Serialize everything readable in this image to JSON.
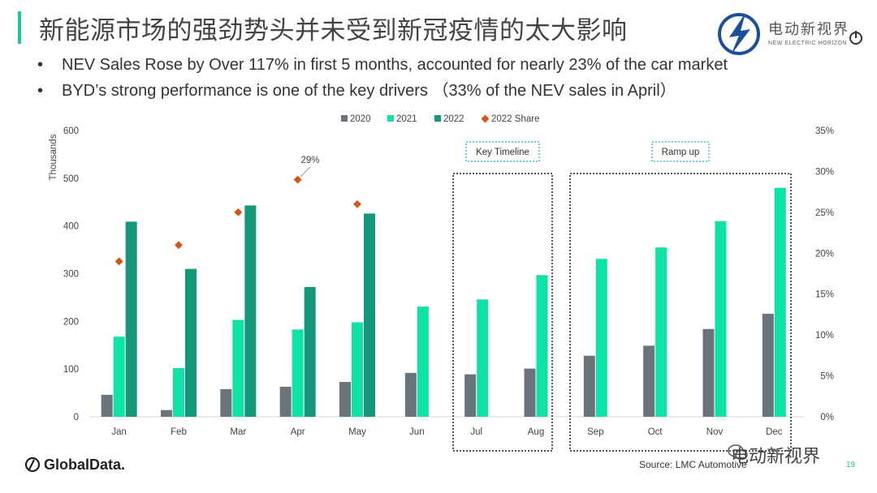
{
  "header": {
    "title": "新能源市场的强劲势头并未受到新冠疫情的太大影响",
    "bullets": [
      "NEV Sales Rose by Over 117% in first 5 months, accounted for nearly 23% of the car market",
      "BYD’s strong performance is one of the key drivers （33% of the NEV sales in April）"
    ],
    "bullet_glyph": "•"
  },
  "logo": {
    "cn": "电动新视界",
    "en": "NEW ELECTRIC HORIZON"
  },
  "footer": {
    "company": "GlobalData.",
    "source": "Source: LMC Automotive",
    "page": "19",
    "watermark": "电动新视界"
  },
  "colors": {
    "s2020": "#6b747c",
    "s2021": "#0ee3a5",
    "s2022": "#14977a",
    "share": "#d4541a",
    "accent": "#1fc7a0"
  },
  "chart_data": {
    "type": "bar",
    "categories": [
      "Jan",
      "Feb",
      "Mar",
      "Apr",
      "May",
      "Jun",
      "Jul",
      "Aug",
      "Sep",
      "Oct",
      "Nov",
      "Dec"
    ],
    "ylabel": "Thousands",
    "ylim": [
      0,
      600
    ],
    "yticks": [
      "0",
      "100",
      "200",
      "300",
      "400",
      "500",
      "600"
    ],
    "y2lim": [
      0,
      35
    ],
    "y2ticks": [
      "0%",
      "5%",
      "10%",
      "15%",
      "20%",
      "25%",
      "30%",
      "35%"
    ],
    "series": [
      {
        "name": "2020",
        "values": [
          46,
          14,
          58,
          63,
          73,
          92,
          89,
          101,
          128,
          149,
          184,
          216
        ]
      },
      {
        "name": "2021",
        "values": [
          168,
          102,
          203,
          183,
          198,
          231,
          246,
          297,
          331,
          355,
          410,
          480
        ]
      },
      {
        "name": "2022",
        "values": [
          409,
          310,
          443,
          272,
          426,
          null,
          null,
          null,
          null,
          null,
          null,
          null
        ]
      },
      {
        "name": "2022 Share",
        "axis": "right",
        "values": [
          19,
          21,
          25,
          29,
          26,
          null,
          null,
          null,
          null,
          null,
          null,
          null
        ]
      }
    ],
    "annotations": [
      {
        "text": "29%",
        "category": "Apr"
      },
      {
        "text": "Key Timeline",
        "categories": [
          "Jul",
          "Aug"
        ]
      },
      {
        "text": "Ramp up",
        "categories": [
          "Sep",
          "Dec"
        ]
      }
    ],
    "legend_position": "top-center",
    "grid": false
  }
}
